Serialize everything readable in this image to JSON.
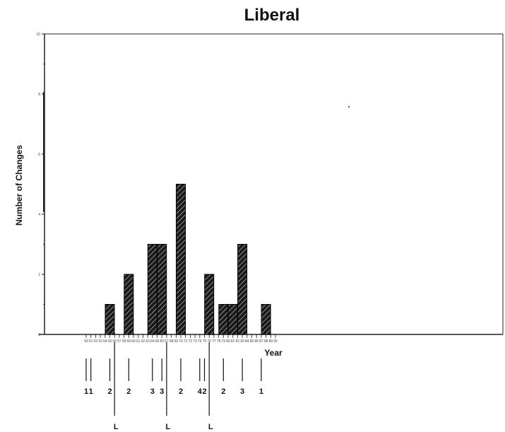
{
  "chart_data": {
    "type": "bar",
    "title": "Liberal",
    "xlabel": "Year",
    "ylabel": "Number of Changes",
    "ylim": [
      0,
      10
    ],
    "yticks": [
      "0",
      "2",
      "4",
      "6",
      "8",
      "10"
    ],
    "years": [
      "50",
      "51",
      "52",
      "53",
      "54",
      "55",
      "56",
      "57",
      "58",
      "59",
      "60",
      "61",
      "62",
      "63",
      "64",
      "65",
      "66",
      "67",
      "68",
      "69",
      "70",
      "71",
      "72",
      "73",
      "74",
      "75",
      "76",
      "77",
      "78",
      "79",
      "80",
      "81",
      "82",
      "83",
      "84",
      "85",
      "86",
      "87",
      "88",
      "89",
      "90"
    ],
    "bars": [
      {
        "year": 55,
        "value": 1
      },
      {
        "year": 59,
        "value": 2
      },
      {
        "year": 64,
        "value": 3
      },
      {
        "year": 66,
        "value": 3
      },
      {
        "year": 70,
        "value": 5
      },
      {
        "year": 76,
        "value": 2
      },
      {
        "year": 79,
        "value": 1
      },
      {
        "year": 81,
        "value": 1
      },
      {
        "year": 83,
        "value": 3
      },
      {
        "year": 88,
        "value": 1
      }
    ],
    "annotations": [
      {
        "year": 50,
        "label": "1",
        "level": "short"
      },
      {
        "year": 51,
        "label": "1",
        "level": "short"
      },
      {
        "year": 55,
        "label": "2",
        "level": "short"
      },
      {
        "year": 56,
        "label": "L",
        "level": "long"
      },
      {
        "year": 59,
        "label": "2",
        "level": "short"
      },
      {
        "year": 64,
        "label": "3",
        "level": "short"
      },
      {
        "year": 66,
        "label": "3",
        "level": "short"
      },
      {
        "year": 67,
        "label": "L",
        "level": "long"
      },
      {
        "year": 70,
        "label": "2",
        "level": "short"
      },
      {
        "year": 74,
        "label": "4",
        "level": "short"
      },
      {
        "year": 75,
        "label": "2",
        "level": "short"
      },
      {
        "year": 76,
        "label": "L",
        "level": "long"
      },
      {
        "year": 79,
        "label": "2",
        "level": "short"
      },
      {
        "year": 83,
        "label": "3",
        "level": "short"
      },
      {
        "year": 87,
        "label": "1",
        "level": "short"
      }
    ],
    "colors": {
      "bar_fill": "#1a1a1a",
      "axis": "#222222"
    },
    "grid": false
  }
}
